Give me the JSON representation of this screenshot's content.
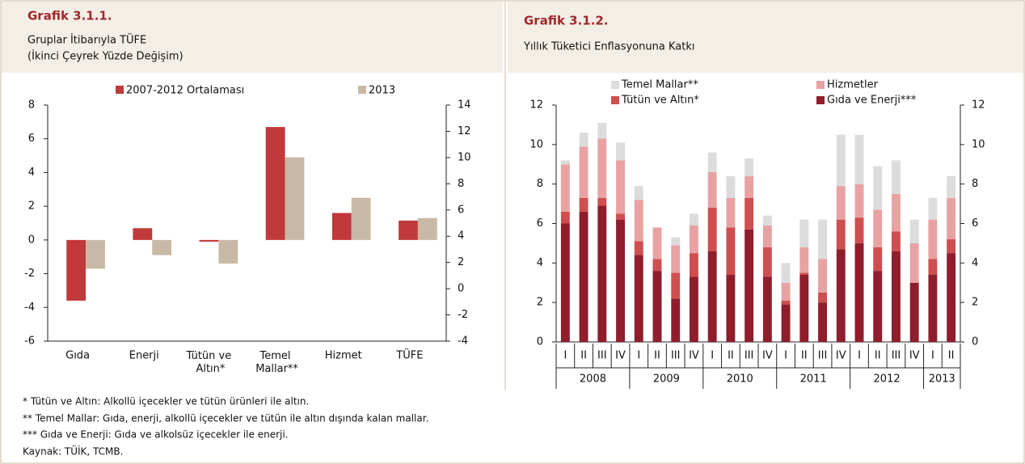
{
  "chart_data": [
    {
      "type": "bar",
      "title": "Grafik 3.1.1.",
      "subtitle": "Gruplar İtibarıyla TÜFE",
      "subtitle2": "(İkinci Çeyrek Yüzde Değişim)",
      "categories": [
        "Gıda",
        "Enerji",
        "Tütün ve Altın*",
        "Temel Mallar**",
        "Hizmet",
        "TÜFE"
      ],
      "series": [
        {
          "name": "2007-2012 Ortalaması",
          "color": "#c0393b",
          "values": [
            -3.6,
            0.7,
            -0.1,
            6.7,
            1.6,
            1.15
          ]
        },
        {
          "name": "2013",
          "color": "#c8b9a6",
          "values": [
            -1.7,
            -0.9,
            -1.4,
            4.9,
            2.5,
            1.3
          ]
        }
      ],
      "ylim": [
        -6,
        8
      ],
      "yticks": [
        -6,
        -4,
        -2,
        0,
        2,
        4,
        6,
        8
      ],
      "y2lim": [
        -4,
        14
      ],
      "y2ticks": [
        -4,
        -2,
        0,
        2,
        4,
        6,
        8,
        10,
        12,
        14
      ]
    },
    {
      "type": "stacked_bar",
      "title": "Grafik 3.1.2.",
      "subtitle": "Yıllık Tüketici Enflasyonuna Katkı",
      "categories": [
        "I",
        "II",
        "III",
        "IV",
        "I",
        "II",
        "III",
        "IV",
        "I",
        "II",
        "III",
        "IV",
        "I",
        "II",
        "III",
        "IV",
        "I",
        "II",
        "III",
        "IV",
        "I",
        "II"
      ],
      "years": [
        "2008",
        "2009",
        "2010",
        "2011",
        "2012",
        "2013"
      ],
      "series": [
        {
          "name": "Gıda ve Enerji***",
          "color": "#8f1d2c",
          "values": [
            6.0,
            6.6,
            6.9,
            6.2,
            4.4,
            3.6,
            2.2,
            3.3,
            4.6,
            3.4,
            5.7,
            3.3,
            1.9,
            3.4,
            2.0,
            4.7,
            5.0,
            3.6,
            4.6,
            3.0,
            3.4,
            4.5
          ]
        },
        {
          "name": "Tütün ve Altın*",
          "color": "#cf4e4f",
          "values": [
            0.6,
            0.7,
            0.4,
            0.3,
            0.7,
            0.6,
            1.3,
            1.2,
            2.2,
            2.4,
            1.6,
            1.5,
            0.2,
            0.1,
            0.5,
            1.5,
            1.3,
            1.2,
            1.0,
            0,
            0.8,
            0.7
          ]
        },
        {
          "name": "Hizmetler",
          "color": "#e8a2a2",
          "values": [
            2.4,
            2.6,
            3.0,
            2.7,
            2.1,
            1.6,
            1.4,
            1.4,
            1.8,
            1.5,
            1.1,
            1.1,
            0.9,
            1.3,
            1.7,
            1.7,
            1.7,
            1.9,
            1.9,
            2.0,
            2.0,
            2.1
          ]
        },
        {
          "name": "Temel Mallar**",
          "color": "#dcdcdc",
          "values": [
            0.2,
            0.7,
            0.8,
            0.9,
            0.7,
            0,
            0.4,
            0.6,
            1.0,
            1.1,
            0.9,
            0.5,
            1.0,
            1.4,
            2.0,
            2.6,
            2.5,
            2.2,
            1.7,
            1.2,
            1.1,
            1.1
          ]
        }
      ],
      "ylim": [
        0,
        12
      ],
      "yticks": [
        0,
        2,
        4,
        6,
        8,
        10,
        12
      ],
      "y2lim": [
        0,
        12
      ],
      "y2ticks": [
        0,
        2,
        4,
        6,
        8,
        10,
        12
      ]
    }
  ],
  "notes": [
    "* Tütün ve Altın: Alkollü içecekler ve tütün ürünleri ile altın.",
    "** Temel Mallar: Gıda, enerji, alkollü içecekler ve tütün ile altın dışında kalan mallar.",
    "*** Gıda ve Enerji: Gıda ve alkolsüz içecekler ile enerji."
  ],
  "source": "Kaynak: TÜİK, TCMB."
}
